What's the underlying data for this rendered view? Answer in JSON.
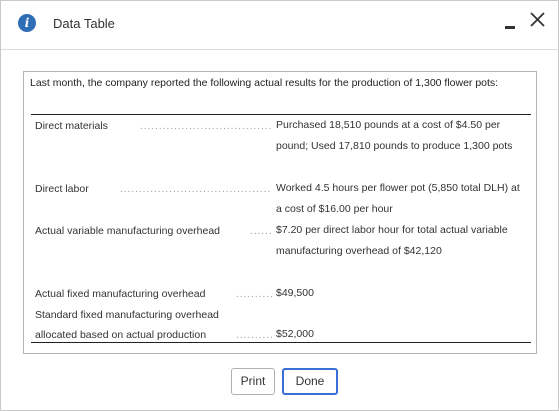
{
  "dialog": {
    "title": "Data Table",
    "info_icon": "info-icon",
    "minimize_icon": "minimize-icon",
    "close_icon": "close-icon"
  },
  "content": {
    "intro": "Last month, the company reported the following actual results for the production of 1,300 flower pots:",
    "rows": [
      {
        "label": "Direct materials",
        "value": "Purchased 18,510 pounds at a cost of $4.50 per pound; Used 17,810 pounds to produce 1,300 pots"
      },
      {
        "label": "Direct labor",
        "value": "Worked 4.5 hours per flower pot (5,850 total DLH) at a cost of $16.00 per hour"
      },
      {
        "label": "Actual variable manufacturing overhead",
        "value": "$7.20 per direct labor hour for total actual variable manufacturing overhead of $42,120"
      },
      {
        "label": "Actual fixed manufacturing overhead",
        "value": "$49,500"
      },
      {
        "label_line1": "Standard fixed manufacturing overhead",
        "label_line2": "allocated based on actual production",
        "value": "$52,000"
      }
    ]
  },
  "buttons": {
    "print": "Print",
    "done": "Done"
  },
  "colors": {
    "info_icon": "#2f6eb5",
    "done_border": "#3a6fd8",
    "border": "#b5b5b5"
  }
}
